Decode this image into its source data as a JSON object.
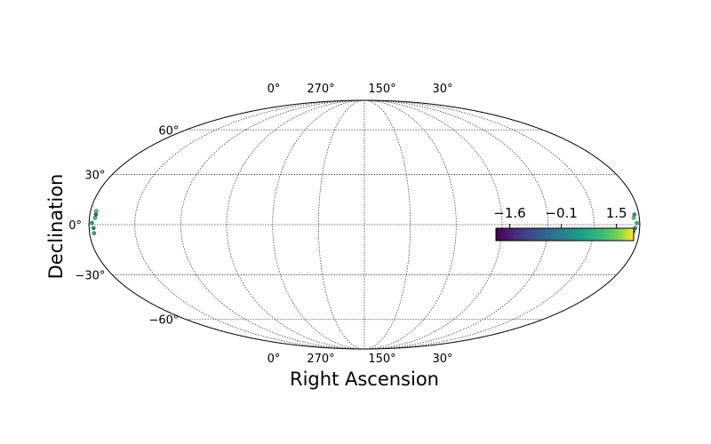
{
  "chart_data": {
    "type": "scatter",
    "projection": "mollweide",
    "xlabel": "Right Ascension",
    "ylabel": "Declination",
    "x_tick_labels_top": [
      "0°",
      "270°",
      "150°",
      "30°"
    ],
    "x_tick_labels_bottom": [
      "0°",
      "270°",
      "150°",
      "30°"
    ],
    "y_ticks": [
      {
        "lat": 60,
        "label": "60°"
      },
      {
        "lat": 30,
        "label": "30°"
      },
      {
        "lat": 0,
        "label": "0°"
      },
      {
        "lat": -30,
        "label": "−30°"
      },
      {
        "lat": -60,
        "label": "−60°"
      }
    ],
    "grid": true,
    "colorbar": {
      "colormap": "viridis",
      "range": [
        -2.0,
        2.0
      ],
      "tick_values": [
        -1.6,
        -0.1,
        1.5
      ],
      "tick_labels": [
        "−1.6",
        "−0.1",
        "1.5"
      ],
      "placement": "right"
    },
    "series": [
      {
        "points": [
          {
            "lon": -178,
            "lat": 1,
            "value": 0.6
          },
          {
            "lon": -177,
            "lat": -2,
            "value": 0.1
          },
          {
            "lon": -178,
            "lat": 4,
            "value": 1.1
          },
          {
            "lon": -176,
            "lat": 6,
            "value": -0.4
          },
          {
            "lon": -177,
            "lat": -5,
            "value": 0.8
          },
          {
            "lon": -178,
            "lat": 8,
            "value": 1.3
          },
          {
            "lon": 178,
            "lat": 1,
            "value": 0.9
          },
          {
            "lon": 177,
            "lat": -2,
            "value": 0.2
          },
          {
            "lon": 178,
            "lat": 4,
            "value": 1.4
          },
          {
            "lon": 176,
            "lat": -4,
            "value": -0.3
          },
          {
            "lon": 177,
            "lat": 6,
            "value": 0.5
          }
        ]
      }
    ]
  }
}
